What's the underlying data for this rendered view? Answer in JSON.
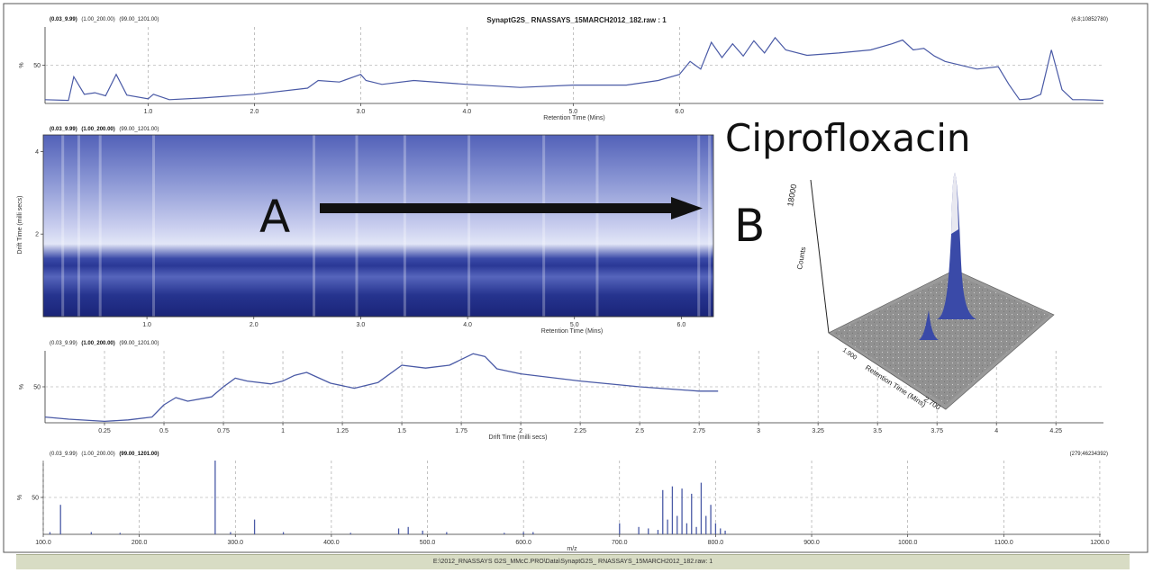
{
  "colors": {
    "trace": "#4a5aa6",
    "heatmap_light": "#e6e9f8",
    "heatmap_dark": "#1c2a86",
    "arrow": "#111111",
    "surface": "#8a8a8a",
    "statusbar": "#d8dcc4"
  },
  "header": {
    "file_title": "SynaptG2S_ RNASSAYS_15MARCH2012_182.raw : 1",
    "tic_intensity": "(6.8;10852780)",
    "ms_intensity": "(279;46234392)"
  },
  "ranges": {
    "panel1": {
      "rt": "(0.03_9.99)",
      "dt": "(1.00_200.00)",
      "mz": "(99.00_1201.00)"
    },
    "panel2": {
      "rt": "(0.03_9.99)",
      "dt": "(1.00_200.00)",
      "mz": "(99.00_1201.00)"
    },
    "panel3": {
      "rt": "(0.03_9.99)",
      "dt": "(1.00_200.00)",
      "mz": "(99.00_1201.00)"
    },
    "panel4": {
      "rt": "(0.03_9.99)",
      "dt": "(1.00_200.00)",
      "mz": "(99.00_1201.00)"
    }
  },
  "annotations": {
    "compound": "Ciprofloxacin",
    "label_a": "A",
    "label_b": "B"
  },
  "status_path": "E:\\2012_RNASSAYS G2S_MMcC.PRO\\Data\\SynaptG2S_ RNASSAYS_15MARCH2012_182.raw: 1",
  "chart_data": [
    {
      "type": "line",
      "name": "tic",
      "xlabel": "Retention Time (Mins)",
      "ylabel": "%",
      "yticks": [
        "50"
      ],
      "xticks": [
        "1.0",
        "2.0",
        "3.0",
        "4.0",
        "5.0",
        "6.0"
      ],
      "xlim": [
        0.03,
        9.99
      ],
      "ylim": [
        0,
        100
      ],
      "x": [
        0.03,
        0.25,
        0.3,
        0.4,
        0.5,
        0.6,
        0.7,
        0.8,
        1.0,
        1.05,
        1.2,
        1.5,
        2.0,
        2.5,
        2.6,
        2.8,
        3.0,
        3.05,
        3.2,
        3.5,
        4.0,
        4.5,
        5.0,
        5.5,
        5.8,
        6.0,
        6.1,
        6.2,
        6.3,
        6.4,
        6.5,
        6.6,
        6.7,
        6.8,
        6.9,
        7.0,
        7.2,
        7.5,
        7.8,
        8.0,
        8.1,
        8.2,
        8.3,
        8.4,
        8.5,
        8.8,
        9.0,
        9.1,
        9.2,
        9.3,
        9.4,
        9.5,
        9.6,
        9.7,
        9.8,
        9.99
      ],
      "y": [
        5,
        4,
        35,
        12,
        14,
        10,
        38,
        11,
        6,
        12,
        5,
        7,
        12,
        20,
        30,
        28,
        38,
        30,
        25,
        30,
        25,
        21,
        24,
        24,
        30,
        38,
        55,
        45,
        80,
        60,
        78,
        62,
        82,
        66,
        86,
        70,
        63,
        66,
        70,
        78,
        83,
        70,
        72,
        62,
        55,
        45,
        48,
        25,
        5,
        6,
        12,
        70,
        18,
        5,
        5,
        4
      ]
    },
    {
      "type": "heatmap",
      "name": "drift_vs_retention",
      "xlabel": "Retention Time (Mins)",
      "ylabel": "Drift Time (milli secs)",
      "xticks": [
        "1.0",
        "2.0",
        "3.0",
        "4.0",
        "5.0",
        "6.0"
      ],
      "yticks": [
        "2",
        "4"
      ],
      "xlim": [
        0.03,
        6.3
      ],
      "ylim": [
        0,
        4.4
      ]
    },
    {
      "type": "line",
      "name": "mobilogram",
      "xlabel": "Drift Time (milli secs)",
      "ylabel": "%",
      "yticks": [
        "50"
      ],
      "xticks": [
        "0.25",
        "0.5",
        "0.75",
        "1",
        "1.25",
        "1.5",
        "1.75",
        "2",
        "2.25",
        "2.5",
        "2.75",
        "3",
        "3.25",
        "3.5",
        "3.75",
        "4",
        "4.25"
      ],
      "xlim": [
        0,
        4.45
      ],
      "ylim": [
        0,
        100
      ],
      "x": [
        0,
        0.1,
        0.25,
        0.35,
        0.45,
        0.5,
        0.55,
        0.6,
        0.7,
        0.75,
        0.8,
        0.85,
        0.95,
        1.0,
        1.05,
        1.1,
        1.2,
        1.3,
        1.4,
        1.5,
        1.6,
        1.7,
        1.8,
        1.85,
        1.9,
        2.0,
        2.25,
        2.5,
        2.75,
        2.83
      ],
      "y": [
        8,
        5,
        2,
        4,
        8,
        25,
        35,
        30,
        36,
        50,
        62,
        58,
        54,
        58,
        66,
        70,
        55,
        48,
        56,
        80,
        76,
        80,
        96,
        92,
        75,
        68,
        58,
        50,
        44,
        44
      ]
    },
    {
      "type": "bar",
      "name": "mass_spectrum",
      "xlabel": "m/z",
      "ylabel": "%",
      "yticks": [
        "50"
      ],
      "xticks": [
        "100.0",
        "200.0",
        "300.0",
        "400.0",
        "500.0",
        "600.0",
        "700.0",
        "800.0",
        "900.0",
        "1000.0",
        "1100.0",
        "1200.0"
      ],
      "xlim": [
        100,
        1201
      ],
      "ylim": [
        0,
        100
      ],
      "x": [
        107,
        118,
        150,
        180,
        279,
        295,
        320,
        350,
        420,
        470,
        480,
        495,
        520,
        580,
        600,
        610,
        700,
        720,
        730,
        740,
        745,
        750,
        755,
        760,
        765,
        770,
        775,
        780,
        785,
        790,
        795,
        800,
        805,
        810
      ],
      "y": [
        3,
        40,
        3,
        2,
        100,
        3,
        20,
        3,
        2,
        8,
        10,
        5,
        3,
        2,
        3,
        3,
        15,
        10,
        8,
        6,
        60,
        20,
        65,
        25,
        62,
        15,
        55,
        10,
        70,
        25,
        40,
        15,
        8,
        5
      ]
    }
  ]
}
